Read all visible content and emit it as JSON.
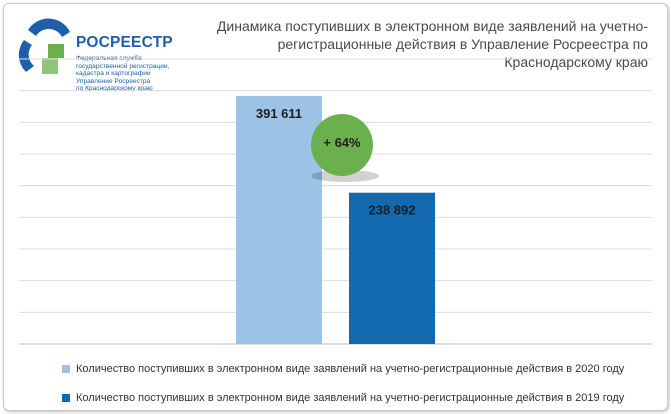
{
  "logo": {
    "name": "РОСРЕЕСТР",
    "subtitle_lines": [
      "Федеральная служба",
      "государственной регистрации,",
      "кадастра и картографии",
      "Управление Росреестра",
      "по Краснодарскому краю"
    ]
  },
  "chart_data": {
    "type": "bar",
    "title_lines": [
      "Динамика поступивших в электронном виде заявлений на учетно-",
      "регистрационные действия в Управление Росреестра по",
      "Краснодарскому краю"
    ],
    "series": [
      {
        "name": "Количество поступивших в электронном виде заявлений на учетно-регистрационные действия в 2020 году",
        "value": 391611,
        "label": "391 611",
        "color": "#9cc3e6"
      },
      {
        "name": "Количество поступивших в электронном виде заявлений на учетно-регистрационные действия в 2019 году",
        "value": 238892,
        "label": "238 892",
        "color": "#1369ae"
      }
    ],
    "ylim": [
      0,
      450000
    ],
    "grid": true,
    "annotation": "+ 64%",
    "annotation_color": "#6ab04c",
    "legend_position": "bottom"
  }
}
